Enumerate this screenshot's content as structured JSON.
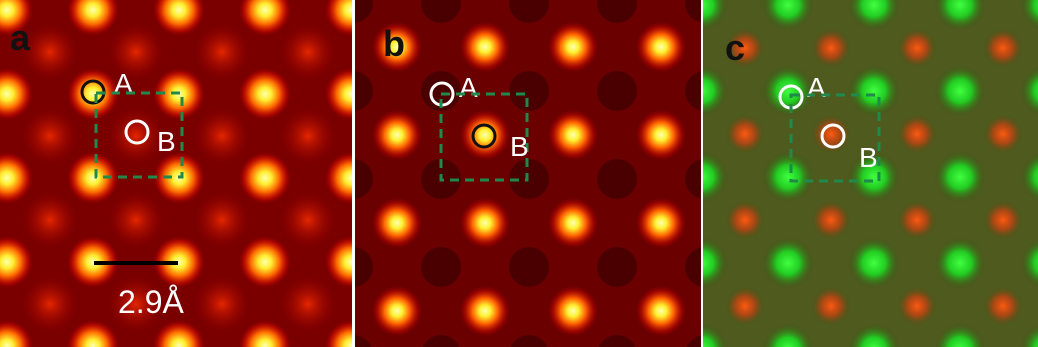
{
  "figure": {
    "panels": [
      {
        "id": "a",
        "letter": "a",
        "colormap": "hot",
        "site_A_label": "A",
        "site_B_label": "B",
        "site_A_circle_color": "#111111",
        "site_B_circle_color": "#ffffff",
        "scale_bar_label": "2.9Å"
      },
      {
        "id": "b",
        "letter": "b",
        "colormap": "hot",
        "site_A_label": "A",
        "site_B_label": "B",
        "site_A_circle_color": "#ffffff",
        "site_B_circle_color": "#111111"
      },
      {
        "id": "c",
        "letter": "c",
        "colormap": "green-red overlay",
        "site_A_label": "A",
        "site_B_label": "B",
        "site_A_circle_color": "#ffffff",
        "site_B_circle_color": "#ffffff"
      }
    ],
    "colors": {
      "unit_cell_box": "#1f8a4c",
      "hot_background": "#5a0000",
      "hot_peak": "#ffff80",
      "overlay_green": "#22dd22",
      "overlay_red": "#ff4a10"
    }
  }
}
